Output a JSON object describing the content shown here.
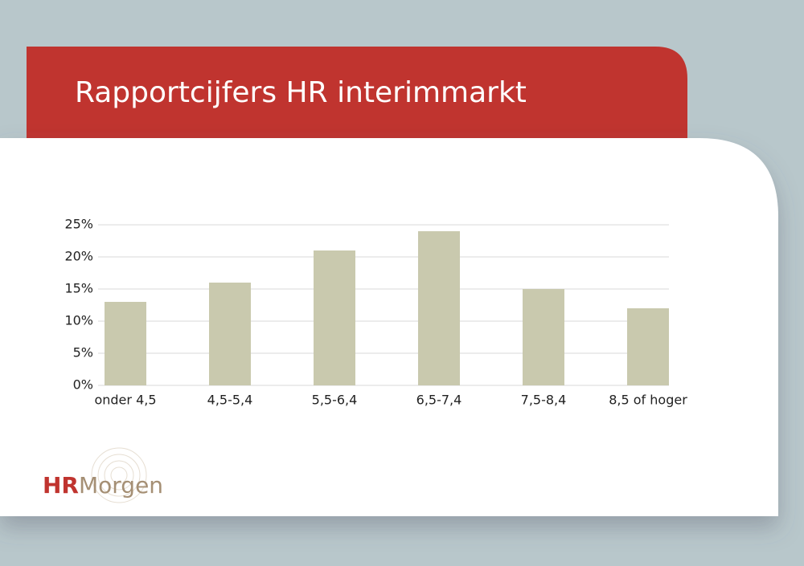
{
  "chart_data": {
    "type": "bar",
    "title": "Rapportcijfers HR interimmarkt",
    "categories": [
      "onder 4,5",
      "4,5-5,4",
      "5,5-6,4",
      "6,5-7,4",
      "7,5-8,4",
      "8,5 of hoger"
    ],
    "values": [
      13,
      16,
      21,
      24,
      15,
      12
    ],
    "color": "#c9c9ae",
    "ylim": [
      0,
      25
    ],
    "yticks": [
      {
        "value": 0,
        "label": "0%"
      },
      {
        "value": 5,
        "label": "5%"
      },
      {
        "value": 10,
        "label": "10%"
      },
      {
        "value": 15,
        "label": "15%"
      },
      {
        "value": 20,
        "label": "20%"
      },
      {
        "value": 25,
        "label": "25%"
      }
    ],
    "grid": true
  },
  "logo": {
    "hr": "HR",
    "morgen": "Morgen"
  }
}
